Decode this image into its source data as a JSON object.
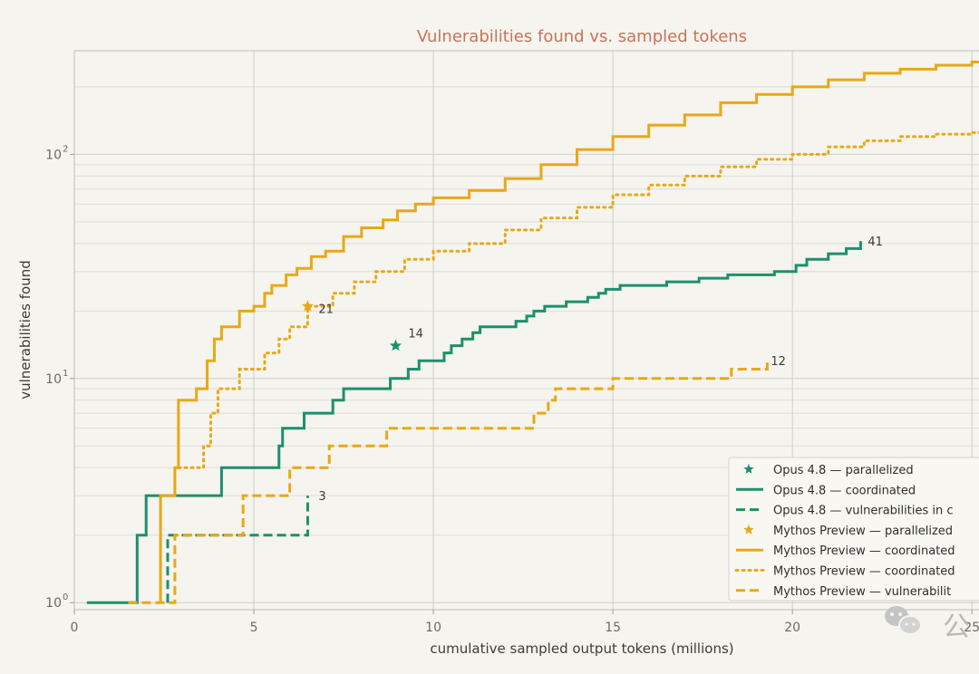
{
  "chart_data": {
    "type": "line",
    "title": "Vulnerabilities found vs. sampled tokens",
    "xlabel": "cumulative sampled output tokens (millions)",
    "ylabel": "vulnerabilities found",
    "yscale": "log",
    "xlim": [
      0,
      25.5
    ],
    "ylim": [
      0.93,
      290
    ],
    "grid": true,
    "legend_position": "lower-right",
    "x_ticks": [
      0,
      5,
      10,
      15,
      20,
      25
    ],
    "x_tick_labels": [
      "0",
      "5",
      "10",
      "15",
      "20",
      "25"
    ],
    "y_ticks": [
      1,
      10,
      100
    ],
    "y_tick_labels": [
      "10",
      "10",
      "10"
    ],
    "y_tick_exponents": [
      "0",
      "1",
      "2"
    ],
    "colors": {
      "opus": "#1e8f6e",
      "mythos": "#e8a817"
    },
    "series": [
      {
        "name": "Opus 4.8 — parallelized",
        "style": "star",
        "color": "#1e8f6e",
        "points": [
          [
            8.95,
            14
          ]
        ]
      },
      {
        "name": "Opus 4.8 — coordinated",
        "style": "solid",
        "color": "#1e8f6e",
        "points": [
          [
            0.35,
            1
          ],
          [
            1.75,
            1
          ],
          [
            1.75,
            2
          ],
          [
            2.0,
            2
          ],
          [
            2.0,
            3
          ],
          [
            4.1,
            3
          ],
          [
            4.1,
            4
          ],
          [
            5.7,
            4
          ],
          [
            5.7,
            5
          ],
          [
            5.8,
            5
          ],
          [
            5.8,
            6
          ],
          [
            6.4,
            6
          ],
          [
            6.4,
            7
          ],
          [
            7.2,
            7
          ],
          [
            7.2,
            8
          ],
          [
            7.5,
            8
          ],
          [
            7.5,
            9
          ],
          [
            8.8,
            9
          ],
          [
            8.8,
            10
          ],
          [
            9.3,
            10
          ],
          [
            9.3,
            11
          ],
          [
            9.6,
            11
          ],
          [
            9.6,
            12
          ],
          [
            10.3,
            12
          ],
          [
            10.3,
            13
          ],
          [
            10.5,
            13
          ],
          [
            10.5,
            14
          ],
          [
            10.8,
            14
          ],
          [
            10.8,
            15
          ],
          [
            11.1,
            15
          ],
          [
            11.1,
            16
          ],
          [
            11.3,
            16
          ],
          [
            11.3,
            17
          ],
          [
            12.3,
            17
          ],
          [
            12.3,
            18
          ],
          [
            12.6,
            18
          ],
          [
            12.6,
            19
          ],
          [
            12.8,
            19
          ],
          [
            12.8,
            20
          ],
          [
            13.1,
            20
          ],
          [
            13.1,
            21
          ],
          [
            13.7,
            21
          ],
          [
            13.7,
            22
          ],
          [
            14.3,
            22
          ],
          [
            14.3,
            23
          ],
          [
            14.6,
            23
          ],
          [
            14.6,
            24
          ],
          [
            14.8,
            24
          ],
          [
            14.8,
            25
          ],
          [
            15.2,
            25
          ],
          [
            15.2,
            26
          ],
          [
            16.5,
            26
          ],
          [
            16.5,
            27
          ],
          [
            17.4,
            27
          ],
          [
            17.4,
            28
          ],
          [
            18.2,
            28
          ],
          [
            18.2,
            29
          ],
          [
            19.5,
            29
          ],
          [
            19.5,
            30
          ],
          [
            20.1,
            30
          ],
          [
            20.1,
            32
          ],
          [
            20.4,
            32
          ],
          [
            20.4,
            34
          ],
          [
            21.0,
            34
          ],
          [
            21.0,
            36
          ],
          [
            21.5,
            36
          ],
          [
            21.5,
            38
          ],
          [
            21.9,
            38
          ],
          [
            21.9,
            41
          ]
        ]
      },
      {
        "name": "Opus 4.8 — vulnerabilities in c",
        "style": "dashed",
        "color": "#1e8f6e",
        "points": [
          [
            2.6,
            1
          ],
          [
            2.6,
            2
          ],
          [
            6.5,
            2
          ],
          [
            6.5,
            3
          ]
        ]
      },
      {
        "name": "Mythos Preview — parallelized",
        "style": "star",
        "color": "#e8a817",
        "points": [
          [
            6.5,
            21
          ]
        ]
      },
      {
        "name": "Mythos Preview — coordinated",
        "style": "solid",
        "color": "#e8a817",
        "points": [
          [
            2.4,
            1
          ],
          [
            2.4,
            2
          ],
          [
            2.4,
            3
          ],
          [
            2.8,
            3
          ],
          [
            2.8,
            4
          ],
          [
            2.9,
            4
          ],
          [
            2.9,
            8
          ],
          [
            3.4,
            8
          ],
          [
            3.4,
            9
          ],
          [
            3.7,
            9
          ],
          [
            3.7,
            12
          ],
          [
            3.9,
            12
          ],
          [
            3.9,
            15
          ],
          [
            4.1,
            15
          ],
          [
            4.1,
            17
          ],
          [
            4.6,
            17
          ],
          [
            4.6,
            20
          ],
          [
            5.0,
            20
          ],
          [
            5.0,
            21
          ],
          [
            5.3,
            21
          ],
          [
            5.3,
            24
          ],
          [
            5.5,
            24
          ],
          [
            5.5,
            26
          ],
          [
            5.9,
            26
          ],
          [
            5.9,
            29
          ],
          [
            6.2,
            29
          ],
          [
            6.2,
            31
          ],
          [
            6.6,
            31
          ],
          [
            6.6,
            35
          ],
          [
            7.0,
            35
          ],
          [
            7.0,
            37
          ],
          [
            7.5,
            37
          ],
          [
            7.5,
            43
          ],
          [
            8.0,
            43
          ],
          [
            8.0,
            47
          ],
          [
            8.6,
            47
          ],
          [
            8.6,
            51
          ],
          [
            9.0,
            51
          ],
          [
            9.0,
            56
          ],
          [
            9.5,
            56
          ],
          [
            9.5,
            60
          ],
          [
            10.0,
            60
          ],
          [
            10.0,
            64
          ],
          [
            11.0,
            64
          ],
          [
            11.0,
            69
          ],
          [
            12.0,
            69
          ],
          [
            12.0,
            78
          ],
          [
            13.0,
            78
          ],
          [
            13.0,
            90
          ],
          [
            14.0,
            90
          ],
          [
            14.0,
            105
          ],
          [
            15.0,
            105
          ],
          [
            15.0,
            120
          ],
          [
            16.0,
            120
          ],
          [
            16.0,
            135
          ],
          [
            17.0,
            135
          ],
          [
            17.0,
            150
          ],
          [
            18.0,
            150
          ],
          [
            18.0,
            170
          ],
          [
            19.0,
            170
          ],
          [
            19.0,
            185
          ],
          [
            20.0,
            185
          ],
          [
            20.0,
            200
          ],
          [
            21.0,
            200
          ],
          [
            21.0,
            215
          ],
          [
            22.0,
            215
          ],
          [
            22.0,
            230
          ],
          [
            23.0,
            230
          ],
          [
            23.0,
            240
          ],
          [
            24.0,
            240
          ],
          [
            24.0,
            250
          ],
          [
            25.0,
            250
          ],
          [
            25.0,
            258
          ],
          [
            25.5,
            258
          ]
        ]
      },
      {
        "name": "Mythos Preview — coordinated",
        "style": "dotted",
        "color": "#e8a817",
        "points": [
          [
            2.8,
            3
          ],
          [
            2.8,
            4
          ],
          [
            3.6,
            4
          ],
          [
            3.6,
            5
          ],
          [
            3.8,
            5
          ],
          [
            3.8,
            7
          ],
          [
            4.0,
            7
          ],
          [
            4.0,
            9
          ],
          [
            4.6,
            9
          ],
          [
            4.6,
            11
          ],
          [
            5.3,
            11
          ],
          [
            5.3,
            13
          ],
          [
            5.7,
            13
          ],
          [
            5.7,
            15
          ],
          [
            6.0,
            15
          ],
          [
            6.0,
            17
          ],
          [
            6.5,
            17
          ],
          [
            6.5,
            21
          ],
          [
            7.2,
            21
          ],
          [
            7.2,
            24
          ],
          [
            7.8,
            24
          ],
          [
            7.8,
            27
          ],
          [
            8.4,
            27
          ],
          [
            8.4,
            30
          ],
          [
            9.2,
            30
          ],
          [
            9.2,
            34
          ],
          [
            10.0,
            34
          ],
          [
            10.0,
            37
          ],
          [
            11.0,
            37
          ],
          [
            11.0,
            40
          ],
          [
            12.0,
            40
          ],
          [
            12.0,
            46
          ],
          [
            13.0,
            46
          ],
          [
            13.0,
            52
          ],
          [
            14.0,
            52
          ],
          [
            14.0,
            58
          ],
          [
            15.0,
            58
          ],
          [
            15.0,
            66
          ],
          [
            16.0,
            66
          ],
          [
            16.0,
            73
          ],
          [
            17.0,
            73
          ],
          [
            17.0,
            80
          ],
          [
            18.0,
            80
          ],
          [
            18.0,
            88
          ],
          [
            19.0,
            88
          ],
          [
            19.0,
            95
          ],
          [
            20.0,
            95
          ],
          [
            20.0,
            100
          ],
          [
            21.0,
            100
          ],
          [
            21.0,
            108
          ],
          [
            22.0,
            108
          ],
          [
            22.0,
            115
          ],
          [
            23.0,
            115
          ],
          [
            23.0,
            120
          ],
          [
            24.0,
            120
          ],
          [
            24.0,
            123
          ],
          [
            25.0,
            123
          ],
          [
            25.0,
            125
          ],
          [
            25.5,
            125
          ]
        ]
      },
      {
        "name": "Mythos Preview — vulnerabilit",
        "style": "dashed",
        "color": "#e8a817",
        "points": [
          [
            1.5,
            1
          ],
          [
            2.0,
            1
          ],
          [
            2.8,
            1
          ],
          [
            2.8,
            2
          ],
          [
            4.7,
            2
          ],
          [
            4.7,
            3
          ],
          [
            6.0,
            3
          ],
          [
            6.0,
            4
          ],
          [
            7.1,
            4
          ],
          [
            7.1,
            5
          ],
          [
            8.7,
            5
          ],
          [
            8.7,
            6
          ],
          [
            12.8,
            6
          ],
          [
            12.8,
            7
          ],
          [
            13.2,
            7
          ],
          [
            13.2,
            8
          ],
          [
            13.4,
            8
          ],
          [
            13.4,
            9
          ],
          [
            15.0,
            9
          ],
          [
            15.0,
            10
          ],
          [
            18.3,
            10
          ],
          [
            18.3,
            11
          ],
          [
            19.3,
            11
          ],
          [
            19.3,
            12
          ]
        ]
      }
    ],
    "annotations": [
      {
        "text": "41",
        "x": 22.1,
        "y": 41
      },
      {
        "text": "21",
        "x": 6.8,
        "y": 20.5
      },
      {
        "text": "14",
        "x": 9.3,
        "y": 16
      },
      {
        "text": "12",
        "x": 19.4,
        "y": 12
      },
      {
        "text": "3",
        "x": 6.8,
        "y": 3
      }
    ]
  },
  "watermark": {
    "text": "公",
    "icon": "wechat-icon"
  }
}
